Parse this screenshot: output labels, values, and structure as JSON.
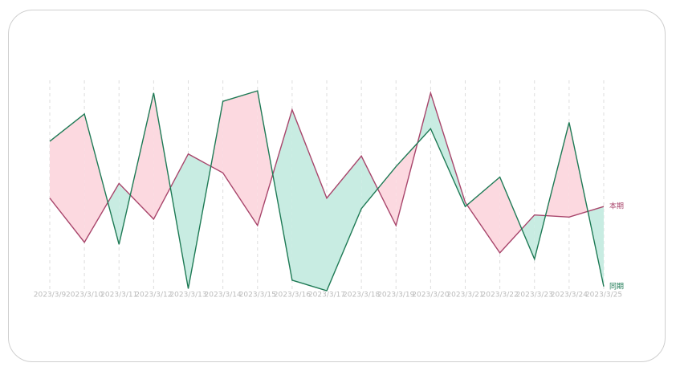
{
  "chart_data": {
    "type": "line",
    "fill_between": true,
    "grid": true,
    "categories": [
      "2023/3/9",
      "2023/3/10",
      "2023/3/11",
      "2023/3/12",
      "2023/3/13",
      "2023/3/14",
      "2023/3/15",
      "2023/3/16",
      "2023/3/17",
      "2023/3/18",
      "2023/3/19",
      "2023/3/20",
      "2023/3/21",
      "2023/3/22",
      "2023/3/23",
      "2023/3/24",
      "2023/3/25"
    ],
    "series": [
      {
        "name": "本期",
        "color": "#a8456b",
        "values": [
          44,
          23,
          51,
          34,
          65,
          56,
          31,
          86,
          44,
          64,
          31,
          94,
          42,
          18,
          36,
          35,
          40
        ]
      },
      {
        "name": "同期",
        "color": "#1e7a55",
        "values": [
          71,
          84,
          22,
          94,
          1,
          90,
          95,
          5,
          0,
          39,
          59,
          77,
          40,
          54,
          15,
          80,
          2
        ]
      }
    ],
    "ylim": [
      0,
      100
    ]
  }
}
